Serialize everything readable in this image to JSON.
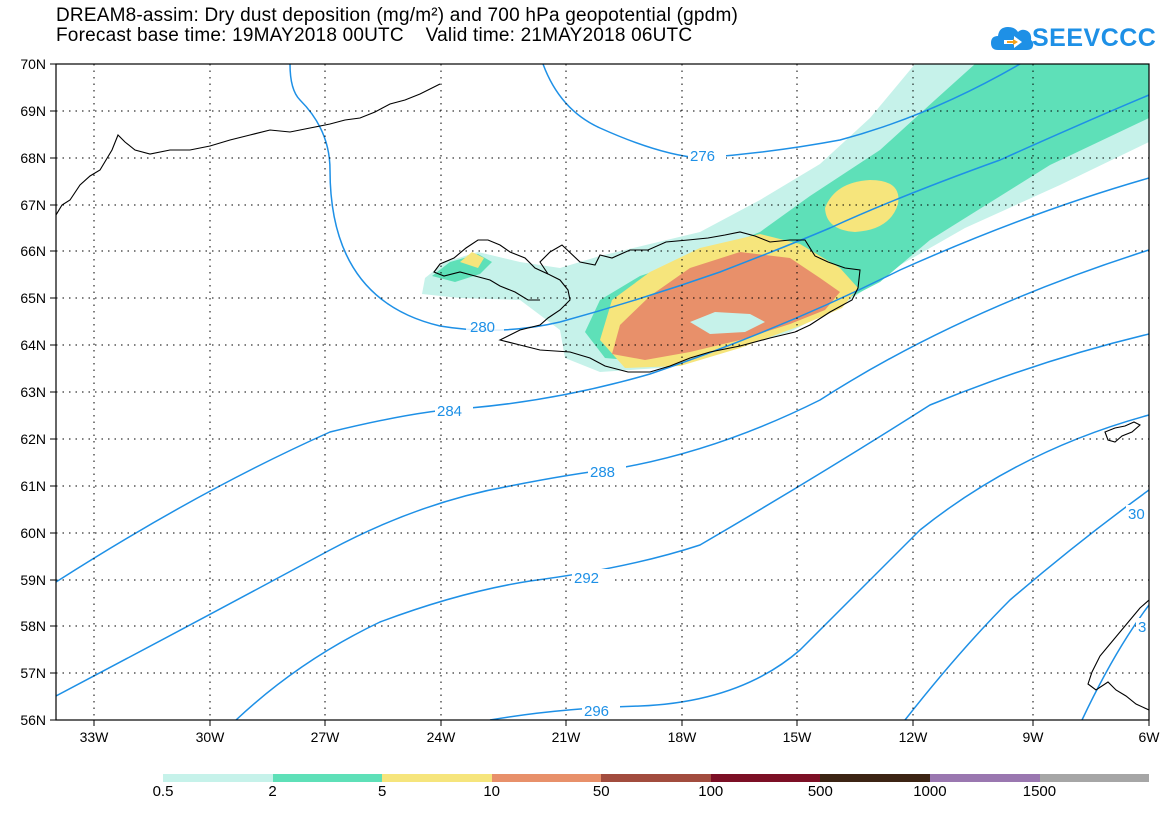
{
  "header": {
    "line1": "DREAM8-assim: Dry dust deposition (mg/m²) and 700 hPa geopotential (gpdm)",
    "line2": "Forecast base time: 19MAY2018 00UTC    Valid time: 21MAY2018 06UTC"
  },
  "logo": {
    "text": "SEEVCCC",
    "icon": "cloud-arrow-icon",
    "color": "#1e90e6"
  },
  "map": {
    "projection": "lat-lon",
    "lon_range": [
      -34.5,
      -6.0
    ],
    "lat_range": [
      56.0,
      70.0
    ],
    "lat_labels": [
      "70N",
      "69N",
      "68N",
      "67N",
      "66N",
      "65N",
      "64N",
      "63N",
      "62N",
      "61N",
      "60N",
      "59N",
      "58N",
      "57N",
      "56N"
    ],
    "lon_labels": [
      "33W",
      "30W",
      "27W",
      "24W",
      "21W",
      "18W",
      "15W",
      "12W",
      "9W",
      "6W"
    ],
    "gridlines": "dotted",
    "contour_color": "#1e90e6",
    "contour_labels": [
      "276",
      "280",
      "284",
      "288",
      "292",
      "296",
      "30",
      "3"
    ],
    "dust_colors": [
      "#c6f2ea",
      "#5ee0b8",
      "#f6e57c",
      "#e8906a"
    ]
  },
  "legend": {
    "colors": [
      "#c6f2ea",
      "#5ee0b8",
      "#f6e57c",
      "#e8906a",
      "#a24c3e",
      "#7c0f25",
      "#3c2414",
      "#9a77b0",
      "#a6a6a6"
    ],
    "labels": [
      "0.5",
      "2",
      "5",
      "10",
      "50",
      "100",
      "500",
      "1000",
      "1500"
    ]
  }
}
